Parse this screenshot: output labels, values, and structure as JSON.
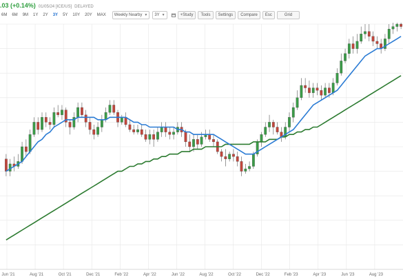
{
  "quote": {
    "change": ".03 (+0.14%)",
    "meta": "01/05/24 [ICE/US]",
    "status": "DELAYED"
  },
  "toolbar": {
    "ranges": [
      "6M",
      "6M",
      "9M",
      "1Y",
      "2Y",
      "3Y",
      "5Y",
      "10Y",
      "20Y",
      "MAX"
    ],
    "active_range": "3Y",
    "contract_select": "Weekly Nearby",
    "period_select": "3Y",
    "buttons": {
      "study": "+Study",
      "tools": "Tools",
      "settings": "Settings",
      "compare": "Compare",
      "esc": "Esc",
      "grid": "Grid"
    }
  },
  "icons": {
    "calendar": "calendar-icon",
    "dropdown": "chevron-down-icon"
  },
  "colors": {
    "up": "#3b9c48",
    "down": "#c2463c",
    "ma_short": "#2a7bd4",
    "ma_long": "#2b7a2f",
    "grid": "#e6e6e6",
    "change_text": "#2e9e3e",
    "delayed_text": "#e08a2b"
  },
  "chart_data": {
    "type": "candlestick",
    "x_tick_labels": [
      "Jun '21",
      "Aug '21",
      "Oct '21",
      "Dec '21",
      "Feb '22",
      "Apr '22",
      "Jun '22",
      "Aug '22",
      "Oct '22",
      "Dec '22",
      "Feb '23",
      "Apr '23",
      "Jun '23",
      "Aug '23"
    ],
    "y_range": [
      0,
      100
    ],
    "grid": true,
    "candles": [
      [
        45,
        40,
        47,
        38
      ],
      [
        40,
        43,
        45,
        38
      ],
      [
        43,
        42,
        46,
        40
      ],
      [
        42,
        44,
        47,
        41
      ],
      [
        44,
        50,
        52,
        43
      ],
      [
        50,
        48,
        53,
        46
      ],
      [
        48,
        55,
        57,
        47
      ],
      [
        55,
        60,
        62,
        54
      ],
      [
        60,
        57,
        62,
        55
      ],
      [
        57,
        62,
        64,
        56
      ],
      [
        62,
        60,
        64,
        58
      ],
      [
        60,
        59,
        62,
        57
      ],
      [
        59,
        64,
        66,
        58
      ],
      [
        64,
        63,
        67,
        62
      ],
      [
        63,
        65,
        67,
        61
      ],
      [
        65,
        60,
        66,
        58
      ],
      [
        60,
        58,
        61,
        55
      ],
      [
        58,
        62,
        64,
        57
      ],
      [
        62,
        66,
        68,
        60
      ],
      [
        66,
        63,
        68,
        62
      ],
      [
        63,
        60,
        65,
        58
      ],
      [
        60,
        57,
        62,
        55
      ],
      [
        57,
        55,
        59,
        53
      ],
      [
        55,
        58,
        60,
        54
      ],
      [
        58,
        61,
        63,
        56
      ],
      [
        61,
        64,
        66,
        60
      ],
      [
        64,
        67,
        69,
        63
      ],
      [
        67,
        64,
        69,
        63
      ],
      [
        64,
        60,
        65,
        58
      ],
      [
        60,
        62,
        63,
        59
      ],
      [
        62,
        59,
        64,
        58
      ],
      [
        59,
        57,
        61,
        56
      ],
      [
        57,
        56,
        59,
        55
      ],
      [
        56,
        57,
        59,
        55
      ],
      [
        57,
        55,
        59,
        54
      ],
      [
        55,
        53,
        57,
        52
      ],
      [
        53,
        55,
        57,
        51
      ],
      [
        55,
        53,
        57,
        50
      ],
      [
        53,
        56,
        58,
        52
      ],
      [
        56,
        58,
        60,
        54
      ],
      [
        58,
        56,
        60,
        54
      ],
      [
        56,
        55,
        58,
        53
      ],
      [
        55,
        56,
        58,
        53
      ],
      [
        56,
        58,
        60,
        55
      ],
      [
        58,
        56,
        60,
        54
      ],
      [
        56,
        52,
        57,
        50
      ],
      [
        52,
        50,
        55,
        48
      ],
      [
        50,
        53,
        55,
        48
      ],
      [
        53,
        51,
        55,
        49
      ],
      [
        51,
        54,
        56,
        50
      ],
      [
        54,
        55,
        57,
        53
      ],
      [
        55,
        53,
        57,
        52
      ],
      [
        53,
        52,
        55,
        50
      ],
      [
        52,
        48,
        53,
        47
      ],
      [
        48,
        46,
        49,
        44
      ],
      [
        46,
        45,
        49,
        42
      ],
      [
        45,
        47,
        48,
        44
      ],
      [
        47,
        46,
        49,
        44
      ],
      [
        46,
        44,
        48,
        42
      ],
      [
        44,
        40,
        46,
        38
      ],
      [
        40,
        41,
        43,
        39
      ],
      [
        41,
        42,
        44,
        40
      ],
      [
        42,
        47,
        48,
        41
      ],
      [
        47,
        52,
        53,
        46
      ],
      [
        52,
        55,
        56,
        50
      ],
      [
        55,
        58,
        60,
        54
      ],
      [
        58,
        60,
        63,
        56
      ],
      [
        60,
        58,
        61,
        55
      ],
      [
        58,
        56,
        60,
        55
      ],
      [
        56,
        54,
        58,
        52
      ],
      [
        54,
        58,
        60,
        53
      ],
      [
        58,
        62,
        64,
        56
      ],
      [
        62,
        66,
        68,
        60
      ],
      [
        66,
        70,
        73,
        65
      ],
      [
        70,
        75,
        78,
        69
      ],
      [
        75,
        74,
        78,
        72
      ],
      [
        74,
        72,
        77,
        70
      ],
      [
        72,
        74,
        76,
        70
      ],
      [
        74,
        73,
        76,
        71
      ],
      [
        73,
        71,
        75,
        69
      ],
      [
        71,
        74,
        76,
        70
      ],
      [
        74,
        72,
        76,
        70
      ],
      [
        72,
        76,
        78,
        71
      ],
      [
        76,
        80,
        82,
        75
      ],
      [
        80,
        85,
        88,
        79
      ],
      [
        85,
        88,
        90,
        84
      ],
      [
        88,
        92,
        94,
        86
      ],
      [
        92,
        90,
        95,
        88
      ],
      [
        90,
        93,
        96,
        88
      ],
      [
        93,
        96,
        99,
        92
      ],
      [
        96,
        97,
        100,
        94
      ],
      [
        97,
        95,
        100,
        93
      ],
      [
        95,
        93,
        97,
        91
      ],
      [
        93,
        92,
        95,
        90
      ],
      [
        92,
        90,
        94,
        88
      ],
      [
        90,
        94,
        96,
        89
      ],
      [
        94,
        98,
        100,
        92
      ],
      [
        98,
        99,
        101,
        96
      ],
      [
        99,
        100,
        103,
        97
      ],
      [
        100,
        99,
        102,
        98
      ]
    ],
    "ma_short": [
      40,
      41,
      42,
      43,
      44,
      46,
      48,
      50,
      52,
      53,
      55,
      56,
      58,
      59,
      60,
      61,
      61,
      61,
      62,
      62,
      62,
      62,
      62,
      61,
      61,
      61,
      62,
      62,
      62,
      62,
      62,
      61,
      60,
      60,
      59,
      59,
      58,
      58,
      58,
      58,
      58,
      58,
      58,
      57,
      57,
      56,
      56,
      55,
      55,
      55,
      55,
      55,
      55,
      54,
      53,
      52,
      51,
      50,
      49,
      48,
      47,
      47,
      47,
      48,
      49,
      50,
      51,
      52,
      53,
      54,
      55,
      56,
      57,
      59,
      61,
      63,
      65,
      67,
      68,
      69,
      70,
      71,
      72,
      73,
      75,
      77,
      79,
      81,
      83,
      85,
      87,
      88,
      89,
      90,
      90,
      91,
      92,
      93,
      94,
      95
    ],
    "ma_long": [
      12,
      13,
      14,
      15,
      16,
      17,
      18,
      19,
      20,
      21,
      22,
      23,
      24,
      25,
      26,
      27,
      28,
      29,
      30,
      31,
      32,
      33,
      34,
      35,
      36,
      37,
      38,
      39,
      40,
      40,
      41,
      42,
      42,
      43,
      43,
      44,
      44,
      45,
      45,
      46,
      46,
      47,
      47,
      47,
      48,
      48,
      48,
      49,
      49,
      49,
      50,
      50,
      50,
      50,
      50,
      51,
      51,
      51,
      51,
      51,
      51,
      51,
      52,
      52,
      52,
      52,
      53,
      53,
      53,
      54,
      54,
      55,
      55,
      56,
      56,
      57,
      57,
      58,
      58,
      59,
      60,
      61,
      62,
      63,
      64,
      65,
      66,
      67,
      68,
      69,
      70,
      71,
      72,
      73,
      74,
      75,
      76,
      77,
      78,
      79
    ]
  }
}
